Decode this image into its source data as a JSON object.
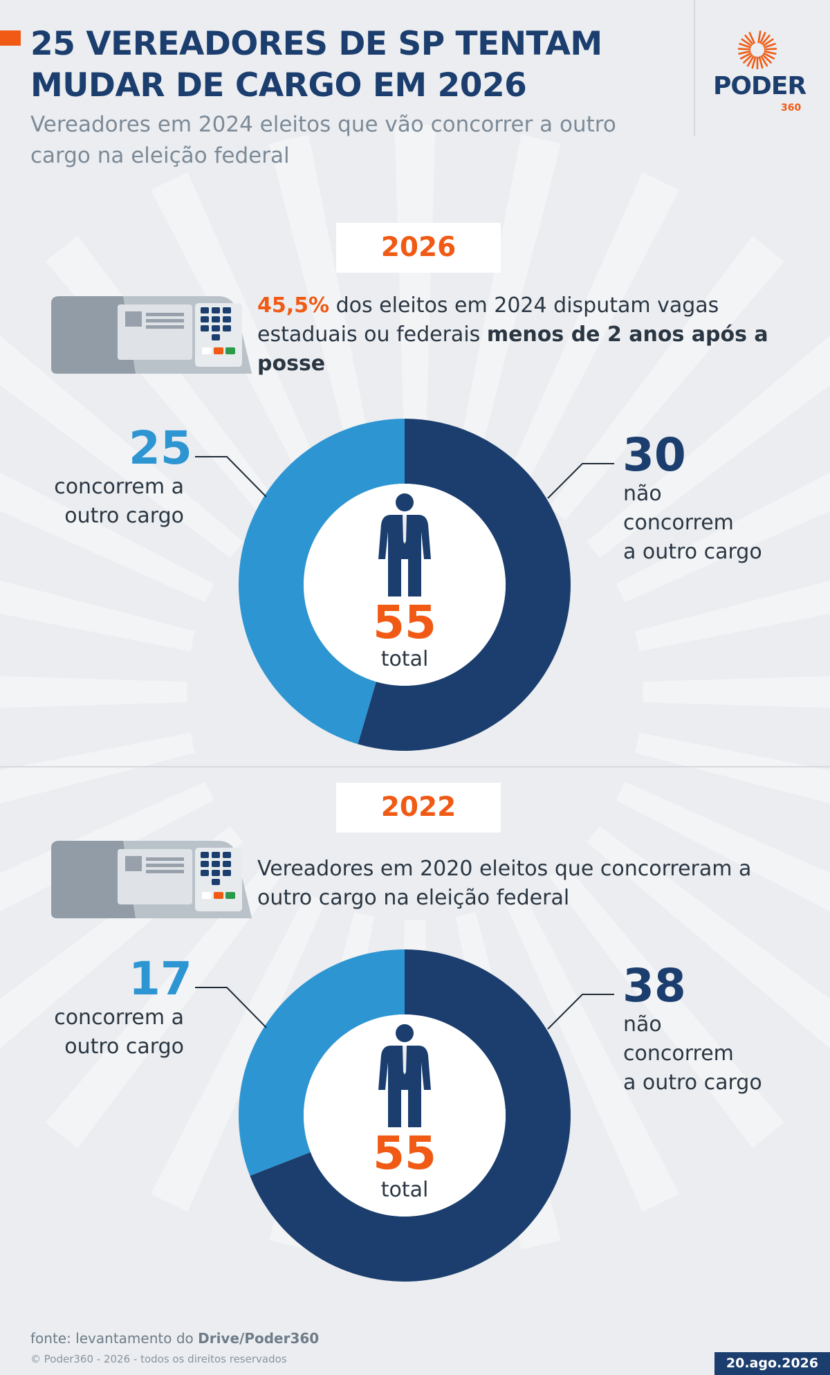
{
  "header": {
    "title": "25 VEREADORES DE SP TENTAM MUDAR DE CARGO EM 2026",
    "subtitle": "Vereadores em 2024 eleitos que vão concorrer a outro cargo na eleição federal",
    "logo_word": "PODER",
    "logo_number": "360"
  },
  "colors": {
    "accent": "#f05a14",
    "dark_blue": "#1b3e6e",
    "light_blue": "#2e95d3",
    "background": "#ebedf0"
  },
  "section_2026": {
    "year": "2026",
    "highlight": "45,5%",
    "text_pre": " dos eleitos em 2024 disputam vagas estaduais ou federais ",
    "text_bold": "menos de 2 anos após a posse",
    "left_value": "25",
    "left_label_line1": "concorrem a",
    "left_label_line2": "outro cargo",
    "right_value": "30",
    "right_label_line1": "não",
    "right_label_line2": "concorrem",
    "right_label_line3": "a outro cargo",
    "total_value": "55",
    "total_label": "total"
  },
  "section_2022": {
    "year": "2022",
    "description": "Vereadores em 2020 eleitos que concorreram a outro cargo na eleição federal",
    "left_value": "17",
    "left_label_line1": "concorrem a",
    "left_label_line2": "outro cargo",
    "right_value": "38",
    "right_label_line1": "não",
    "right_label_line2": "concorrem",
    "right_label_line3": "a outro cargo",
    "total_value": "55",
    "total_label": "total"
  },
  "chart_data": [
    {
      "type": "pie",
      "title": "2026",
      "categories": [
        "concorrem a outro cargo",
        "não concorrem a outro cargo"
      ],
      "values": [
        25,
        30
      ],
      "total": 55,
      "colors": [
        "#2e95d3",
        "#1b3e6e"
      ]
    },
    {
      "type": "pie",
      "title": "2022",
      "categories": [
        "concorrem a outro cargo",
        "não concorrem a outro cargo"
      ],
      "values": [
        17,
        38
      ],
      "total": 55,
      "colors": [
        "#2e95d3",
        "#1b3e6e"
      ]
    }
  ],
  "footer": {
    "source_prefix": "fonte: levantamento do ",
    "source_bold": "Drive/Poder360",
    "copyright": "© Poder360 - 2026 - todos os direitos reservados",
    "date": "20.ago.2026"
  }
}
